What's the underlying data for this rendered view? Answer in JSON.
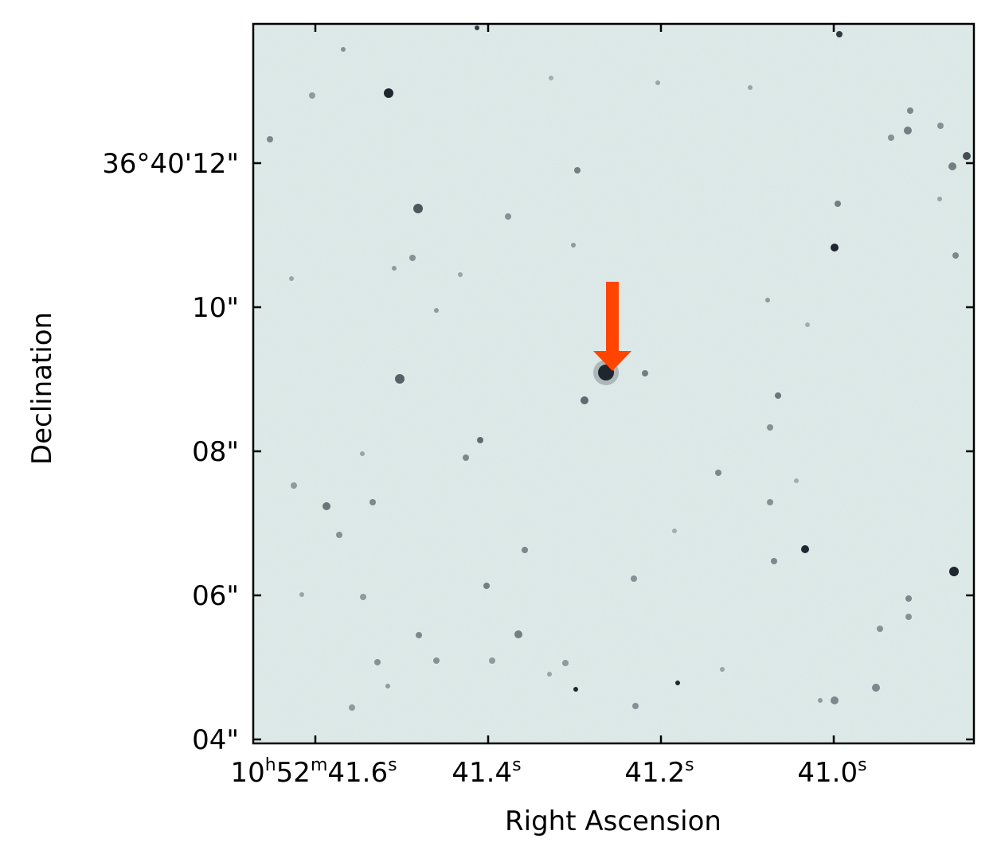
{
  "image": {
    "background_color": "#d8e6e4",
    "star_color": "#1f2630",
    "arrow_color": "#ff4500"
  },
  "axes": {
    "x_label": "Right Ascension",
    "y_label": "Declination",
    "x_tick_labels": [
      {
        "h": "10",
        "m": "52",
        "s": "41.6"
      },
      {
        "s": "41.4"
      },
      {
        "s": "41.2"
      },
      {
        "s": "41.0"
      }
    ],
    "y_tick_labels": [
      "36°40'12\"",
      "10\"",
      "08\"",
      "06\"",
      "04\""
    ]
  }
}
